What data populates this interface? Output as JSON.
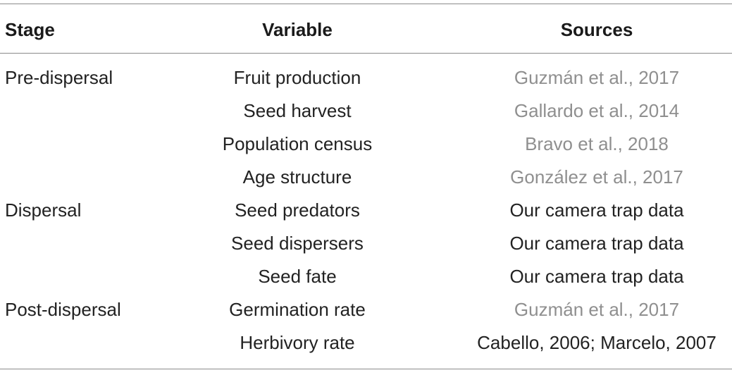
{
  "table": {
    "headers": {
      "stage": "Stage",
      "variable": "Variable",
      "sources": "Sources"
    },
    "rows": [
      {
        "stage": "Pre-dispersal",
        "variable": "Fruit production",
        "sources": "Guzmán et al., 2017"
      },
      {
        "stage": "",
        "variable": "Seed harvest",
        "sources": "Gallardo et al., 2014"
      },
      {
        "stage": "",
        "variable": "Population census",
        "sources": "Bravo et al., 2018"
      },
      {
        "stage": "",
        "variable": "Age structure",
        "sources": "González et al., 2017"
      },
      {
        "stage": "Dispersal",
        "variable": "Seed predators",
        "sources": "Our camera trap data"
      },
      {
        "stage": "",
        "variable": "Seed dispersers",
        "sources": "Our camera trap data"
      },
      {
        "stage": "",
        "variable": "Seed fate",
        "sources": "Our camera trap data"
      },
      {
        "stage": "Post-dispersal",
        "variable": "Germination rate",
        "sources": "Guzmán et al., 2017"
      },
      {
        "stage": "",
        "variable": "Herbivory rate",
        "sources_part1": "Cabello, 2006",
        "sources_sep": ";",
        "sources_part2": " Marcelo, 2007"
      }
    ]
  },
  "colors": {
    "text": "#222222",
    "citation_link": "#8f8f8f",
    "rule": "#8a8a8a"
  }
}
